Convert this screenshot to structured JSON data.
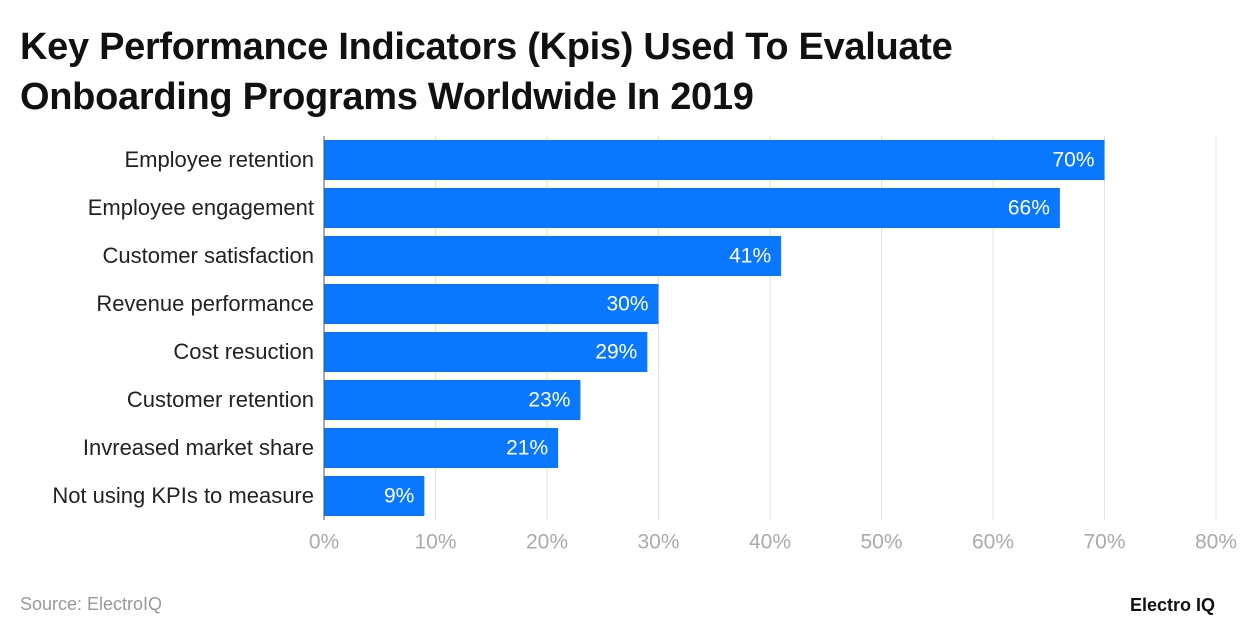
{
  "chart_data": {
    "type": "bar",
    "orientation": "horizontal",
    "title": "Key Performance Indicators (Kpis) Used To Evaluate Onboarding Programs Worldwide In 2019",
    "categories": [
      "Employee retention",
      "Employee engagement",
      "Customer satisfaction",
      "Revenue performance",
      "Cost resuction",
      "Customer retention",
      "Invreased market share",
      "Not using KPIs to measure"
    ],
    "values": [
      70,
      66,
      41,
      30,
      29,
      23,
      21,
      9
    ],
    "value_labels": [
      "70%",
      "66%",
      "41%",
      "30%",
      "29%",
      "23%",
      "21%",
      "9%"
    ],
    "color": "#0a77ff",
    "xlim": [
      0,
      80
    ],
    "xticks": [
      {
        "value": 0,
        "label": "0%"
      },
      {
        "value": 10,
        "label": "10%"
      },
      {
        "value": 20,
        "label": "20%"
      },
      {
        "value": 30,
        "label": "30%"
      },
      {
        "value": 40,
        "label": "40%"
      },
      {
        "value": 50,
        "label": "50%"
      },
      {
        "value": 60,
        "label": "60%"
      },
      {
        "value": 70,
        "label": "70%"
      },
      {
        "value": 80,
        "label": "80%"
      }
    ],
    "grid": true,
    "source": "Source: ElectroIQ",
    "brand": "Electro IQ"
  }
}
